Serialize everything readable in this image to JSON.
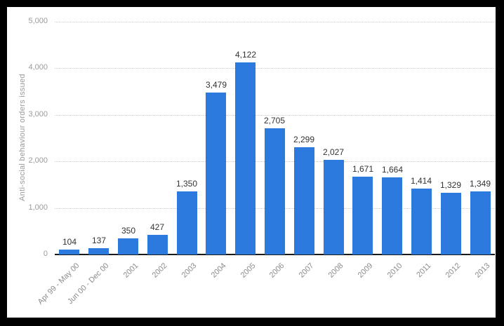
{
  "chart_data": {
    "type": "bar",
    "title": "",
    "xlabel": "",
    "ylabel": "Anti-social behaviour orders issued",
    "categories": [
      "Apr 99 - May 00",
      "Jun 00 - Dec 00",
      "2001",
      "2002",
      "2003",
      "2004",
      "2005",
      "2006",
      "2007",
      "2008",
      "2009",
      "2010",
      "2011",
      "2012",
      "2013"
    ],
    "values": [
      104,
      137,
      350,
      427,
      1350,
      3479,
      4122,
      2705,
      2299,
      2027,
      1671,
      1664,
      1414,
      1329,
      1349
    ],
    "value_labels": [
      "104",
      "137",
      "350",
      "427",
      "1,350",
      "3,479",
      "4,122",
      "2,705",
      "2,299",
      "2,027",
      "1,671",
      "1,664",
      "1,414",
      "1,329",
      "1,349"
    ],
    "ylim": [
      0,
      5000
    ],
    "yticks": [
      0,
      1000,
      2000,
      3000,
      4000,
      5000
    ],
    "ytick_labels": [
      "0",
      "1,000",
      "2,000",
      "3,000",
      "4,000",
      "5,000"
    ],
    "grid": "horizontal-dotted",
    "legend": null,
    "bar_color": "#2c7ade",
    "grid_color": "#c9c9c9",
    "axis_line_color": "#1a1a1a",
    "ytick_color": "#9a9a9a",
    "xtick_color": "#8c8c8c",
    "value_label_color": "#333333",
    "frame_color": "#000000",
    "background_color": "#ffffff"
  }
}
